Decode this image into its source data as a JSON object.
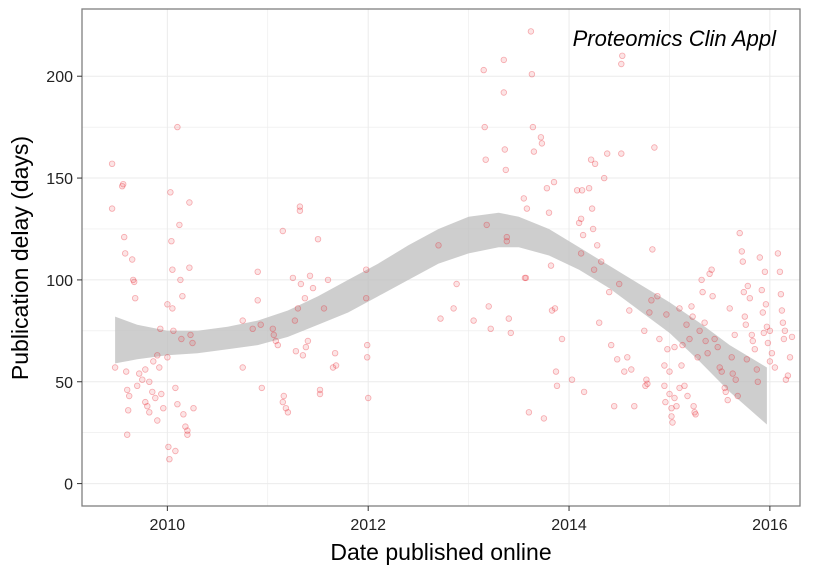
{
  "chart_data": {
    "type": "scatter",
    "xlabel": "Date published online",
    "ylabel": "Publication delay (days)",
    "annotation": "Proteomics Clin Appl",
    "xlim": [
      2009.15,
      2016.3
    ],
    "ylim": [
      -11,
      233
    ],
    "x_ticks": [
      2010,
      2012,
      2014,
      2016
    ],
    "x_tick_labels": [
      "2010",
      "2012",
      "2014",
      "2016"
    ],
    "y_ticks": [
      0,
      50,
      100,
      150,
      200
    ],
    "y_tick_labels": [
      "0",
      "50",
      "100",
      "150",
      "200"
    ],
    "grid": true,
    "colors": {
      "points": "#e8202a",
      "band": "#bdbdbd",
      "border": "#7f7f7f",
      "grid": "#ebebeb"
    },
    "points": [
      [
        2009.45,
        157
      ],
      [
        2009.45,
        135
      ],
      [
        2009.48,
        57
      ],
      [
        2009.55,
        146
      ],
      [
        2009.56,
        147
      ],
      [
        2009.57,
        121
      ],
      [
        2009.58,
        113
      ],
      [
        2009.59,
        55
      ],
      [
        2009.6,
        46
      ],
      [
        2009.61,
        36
      ],
      [
        2009.6,
        24
      ],
      [
        2009.62,
        43
      ],
      [
        2009.65,
        110
      ],
      [
        2009.66,
        100
      ],
      [
        2009.67,
        99
      ],
      [
        2009.68,
        91
      ],
      [
        2009.7,
        48
      ],
      [
        2009.72,
        54
      ],
      [
        2009.75,
        51
      ],
      [
        2009.78,
        56
      ],
      [
        2009.78,
        40
      ],
      [
        2009.8,
        38
      ],
      [
        2009.82,
        50
      ],
      [
        2009.82,
        35
      ],
      [
        2009.85,
        45
      ],
      [
        2009.86,
        60
      ],
      [
        2009.88,
        42
      ],
      [
        2009.9,
        31
      ],
      [
        2009.9,
        63
      ],
      [
        2009.92,
        57
      ],
      [
        2009.93,
        76
      ],
      [
        2009.94,
        44
      ],
      [
        2009.96,
        37
      ],
      [
        2010.0,
        62
      ],
      [
        2010.0,
        88
      ],
      [
        2010.01,
        18
      ],
      [
        2010.02,
        12
      ],
      [
        2010.03,
        143
      ],
      [
        2010.04,
        119
      ],
      [
        2010.05,
        105
      ],
      [
        2010.05,
        86
      ],
      [
        2010.06,
        75
      ],
      [
        2010.08,
        47
      ],
      [
        2010.08,
        16
      ],
      [
        2010.1,
        175
      ],
      [
        2010.1,
        39
      ],
      [
        2010.12,
        127
      ],
      [
        2010.13,
        100
      ],
      [
        2010.14,
        71
      ],
      [
        2010.15,
        92
      ],
      [
        2010.16,
        34
      ],
      [
        2010.18,
        28
      ],
      [
        2010.2,
        24
      ],
      [
        2010.2,
        26
      ],
      [
        2010.22,
        138
      ],
      [
        2010.22,
        106
      ],
      [
        2010.23,
        73
      ],
      [
        2010.25,
        69
      ],
      [
        2010.26,
        37
      ],
      [
        2010.75,
        80
      ],
      [
        2010.75,
        57
      ],
      [
        2010.85,
        76
      ],
      [
        2010.9,
        104
      ],
      [
        2010.9,
        90
      ],
      [
        2010.93,
        78
      ],
      [
        2010.94,
        47
      ],
      [
        2011.05,
        76
      ],
      [
        2011.06,
        73
      ],
      [
        2011.08,
        70
      ],
      [
        2011.1,
        68
      ],
      [
        2011.15,
        124
      ],
      [
        2011.15,
        40
      ],
      [
        2011.16,
        43
      ],
      [
        2011.18,
        37
      ],
      [
        2011.2,
        35
      ],
      [
        2011.25,
        101
      ],
      [
        2011.27,
        80
      ],
      [
        2011.28,
        65
      ],
      [
        2011.3,
        86
      ],
      [
        2011.32,
        134
      ],
      [
        2011.32,
        136
      ],
      [
        2011.33,
        98
      ],
      [
        2011.35,
        63
      ],
      [
        2011.37,
        91
      ],
      [
        2011.38,
        67
      ],
      [
        2011.4,
        70
      ],
      [
        2011.42,
        102
      ],
      [
        2011.45,
        96
      ],
      [
        2011.5,
        120
      ],
      [
        2011.52,
        46
      ],
      [
        2011.52,
        44
      ],
      [
        2011.56,
        86
      ],
      [
        2011.6,
        100
      ],
      [
        2011.65,
        57
      ],
      [
        2011.67,
        64
      ],
      [
        2011.68,
        58
      ],
      [
        2011.98,
        105
      ],
      [
        2011.98,
        91
      ],
      [
        2011.99,
        68
      ],
      [
        2011.99,
        62
      ],
      [
        2012.0,
        42
      ],
      [
        2012.7,
        117
      ],
      [
        2012.72,
        81
      ],
      [
        2012.85,
        86
      ],
      [
        2012.88,
        98
      ],
      [
        2013.05,
        80
      ],
      [
        2013.15,
        203
      ],
      [
        2013.16,
        175
      ],
      [
        2013.17,
        159
      ],
      [
        2013.18,
        127
      ],
      [
        2013.2,
        87
      ],
      [
        2013.22,
        76
      ],
      [
        2013.35,
        208
      ],
      [
        2013.35,
        192
      ],
      [
        2013.36,
        164
      ],
      [
        2013.37,
        154
      ],
      [
        2013.38,
        121
      ],
      [
        2013.38,
        119
      ],
      [
        2013.4,
        81
      ],
      [
        2013.42,
        74
      ],
      [
        2013.55,
        140
      ],
      [
        2013.56,
        101
      ],
      [
        2013.57,
        101
      ],
      [
        2013.58,
        135
      ],
      [
        2013.6,
        35
      ],
      [
        2013.62,
        222
      ],
      [
        2013.63,
        201
      ],
      [
        2013.64,
        175
      ],
      [
        2013.65,
        163
      ],
      [
        2013.72,
        170
      ],
      [
        2013.73,
        167
      ],
      [
        2013.75,
        32
      ],
      [
        2013.78,
        145
      ],
      [
        2013.8,
        133
      ],
      [
        2013.82,
        107
      ],
      [
        2013.83,
        85
      ],
      [
        2013.85,
        148
      ],
      [
        2013.86,
        86
      ],
      [
        2013.87,
        55
      ],
      [
        2013.88,
        48
      ],
      [
        2013.93,
        71
      ],
      [
        2014.03,
        51
      ],
      [
        2014.08,
        144
      ],
      [
        2014.1,
        128
      ],
      [
        2014.12,
        113
      ],
      [
        2014.12,
        130
      ],
      [
        2014.13,
        144
      ],
      [
        2014.14,
        122
      ],
      [
        2014.15,
        45
      ],
      [
        2014.2,
        145
      ],
      [
        2014.22,
        159
      ],
      [
        2014.23,
        135
      ],
      [
        2014.24,
        125
      ],
      [
        2014.25,
        105
      ],
      [
        2014.26,
        157
      ],
      [
        2014.28,
        117
      ],
      [
        2014.3,
        79
      ],
      [
        2014.32,
        109
      ],
      [
        2014.35,
        150
      ],
      [
        2014.38,
        162
      ],
      [
        2014.4,
        94
      ],
      [
        2014.42,
        68
      ],
      [
        2014.45,
        38
      ],
      [
        2014.48,
        61
      ],
      [
        2014.5,
        98
      ],
      [
        2014.52,
        162
      ],
      [
        2014.52,
        206
      ],
      [
        2014.53,
        210
      ],
      [
        2014.55,
        55
      ],
      [
        2014.58,
        62
      ],
      [
        2014.6,
        85
      ],
      [
        2014.62,
        56
      ],
      [
        2014.65,
        38
      ],
      [
        2014.75,
        75
      ],
      [
        2014.76,
        48
      ],
      [
        2014.77,
        51
      ],
      [
        2014.78,
        49
      ],
      [
        2014.8,
        84
      ],
      [
        2014.82,
        90
      ],
      [
        2014.83,
        115
      ],
      [
        2014.85,
        165
      ],
      [
        2014.88,
        92
      ],
      [
        2014.9,
        71
      ],
      [
        2014.95,
        58
      ],
      [
        2014.95,
        48
      ],
      [
        2014.96,
        40
      ],
      [
        2014.97,
        83
      ],
      [
        2014.98,
        66
      ],
      [
        2015.0,
        55
      ],
      [
        2015.0,
        44
      ],
      [
        2015.02,
        37
      ],
      [
        2015.02,
        33
      ],
      [
        2015.03,
        30
      ],
      [
        2015.05,
        67
      ],
      [
        2015.05,
        42
      ],
      [
        2015.07,
        38
      ],
      [
        2015.1,
        86
      ],
      [
        2015.1,
        47
      ],
      [
        2015.12,
        58
      ],
      [
        2015.13,
        68
      ],
      [
        2015.15,
        48
      ],
      [
        2015.17,
        78
      ],
      [
        2015.18,
        43
      ],
      [
        2015.2,
        71
      ],
      [
        2015.22,
        87
      ],
      [
        2015.23,
        82
      ],
      [
        2015.24,
        38
      ],
      [
        2015.25,
        35
      ],
      [
        2015.26,
        34
      ],
      [
        2015.28,
        62
      ],
      [
        2015.3,
        75
      ],
      [
        2015.32,
        100
      ],
      [
        2015.33,
        94
      ],
      [
        2015.35,
        79
      ],
      [
        2015.36,
        70
      ],
      [
        2015.38,
        64
      ],
      [
        2015.4,
        103
      ],
      [
        2015.42,
        105
      ],
      [
        2015.43,
        92
      ],
      [
        2015.45,
        71
      ],
      [
        2015.48,
        67
      ],
      [
        2015.5,
        57
      ],
      [
        2015.52,
        55
      ],
      [
        2015.55,
        47
      ],
      [
        2015.56,
        45
      ],
      [
        2015.58,
        41
      ],
      [
        2015.6,
        86
      ],
      [
        2015.62,
        62
      ],
      [
        2015.63,
        54
      ],
      [
        2015.65,
        73
      ],
      [
        2015.66,
        51
      ],
      [
        2015.68,
        43
      ],
      [
        2015.7,
        123
      ],
      [
        2015.72,
        114
      ],
      [
        2015.73,
        109
      ],
      [
        2015.74,
        94
      ],
      [
        2015.75,
        82
      ],
      [
        2015.76,
        78
      ],
      [
        2015.77,
        61
      ],
      [
        2015.78,
        97
      ],
      [
        2015.8,
        91
      ],
      [
        2015.82,
        73
      ],
      [
        2015.83,
        70
      ],
      [
        2015.85,
        66
      ],
      [
        2015.87,
        56
      ],
      [
        2015.88,
        50
      ],
      [
        2015.9,
        111
      ],
      [
        2015.92,
        95
      ],
      [
        2015.93,
        84
      ],
      [
        2015.94,
        74
      ],
      [
        2015.95,
        104
      ],
      [
        2015.96,
        88
      ],
      [
        2015.97,
        77
      ],
      [
        2015.98,
        69
      ],
      [
        2016.0,
        60
      ],
      [
        2016.0,
        75
      ],
      [
        2016.02,
        64
      ],
      [
        2016.05,
        57
      ],
      [
        2016.08,
        113
      ],
      [
        2016.1,
        104
      ],
      [
        2016.11,
        93
      ],
      [
        2016.12,
        85
      ],
      [
        2016.13,
        79
      ],
      [
        2016.14,
        71
      ],
      [
        2016.15,
        75
      ],
      [
        2016.16,
        51
      ],
      [
        2016.18,
        53
      ],
      [
        2016.2,
        62
      ],
      [
        2016.22,
        72
      ]
    ],
    "smooth": {
      "x": [
        2009.48,
        2009.7,
        2010.0,
        2010.3,
        2010.6,
        2010.9,
        2011.2,
        2011.5,
        2011.8,
        2012.1,
        2012.4,
        2012.7,
        2013.0,
        2013.3,
        2013.5,
        2013.8,
        2014.1,
        2014.4,
        2014.7,
        2015.0,
        2015.3,
        2015.6,
        2015.97
      ],
      "lower": [
        59,
        61,
        63,
        64,
        66,
        68,
        72,
        78,
        84,
        92,
        100,
        108,
        113,
        116,
        116,
        112,
        105,
        96,
        85,
        74,
        60,
        45,
        29
      ],
      "upper": [
        82,
        78,
        75,
        75,
        77,
        80,
        85,
        92,
        100,
        108,
        117,
        125,
        131,
        133,
        131,
        125,
        116,
        107,
        98,
        89,
        79,
        68,
        57
      ]
    }
  }
}
